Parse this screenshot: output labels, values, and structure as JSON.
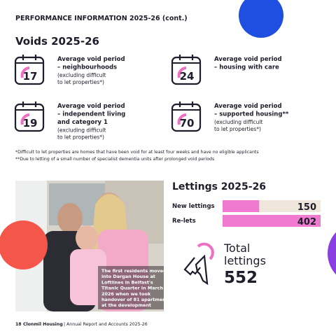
{
  "header": {
    "title": "PERFORMANCE INFORMATION 2025-26 (cont.)"
  },
  "voids": {
    "title": "Voids 2025-26",
    "items": [
      {
        "value": 17,
        "label": [
          "Average void period",
          "– neighbourhoods"
        ],
        "note": [
          "(excluding difficult",
          "to let properties*)"
        ]
      },
      {
        "value": 24,
        "label": [
          "Average void period",
          "– housing with care"
        ],
        "note": []
      },
      {
        "value": 19,
        "label": [
          "Average void period",
          "– independent living",
          "and category 1"
        ],
        "note": [
          "(excluding difficult",
          "to let properties*)"
        ]
      },
      {
        "value": 70,
        "label": [
          "Average void period",
          "– supported housing**"
        ],
        "note": [
          "(excluding difficult",
          "to let properties*)"
        ]
      }
    ]
  },
  "footnotes": [
    "*Difficult to let properties are homes that have been void for at least four weeks and have no eligible applicants",
    "**Due to letting of a small number of specialist dementia units after prolonged void periods"
  ],
  "photo": {
    "caption": [
      "The first residents moved",
      "into Dargan House at",
      "Loftlines in Belfast's",
      "Titanic Quarter in March",
      "2026 when we took",
      "handover of 81 apartments",
      "at the development"
    ]
  },
  "lettings": {
    "title": "Lettings 2025-26",
    "rows": [
      {
        "label": "New lettings",
        "value": 150
      },
      {
        "label": "Re-lets",
        "value": 402
      }
    ],
    "total": {
      "label": [
        "Total",
        "lettings"
      ],
      "value": 552
    }
  },
  "footer": {
    "page": "18",
    "org": "Clonmil Housing",
    "text": "| Annual Report and Accounts 2025-26"
  }
}
